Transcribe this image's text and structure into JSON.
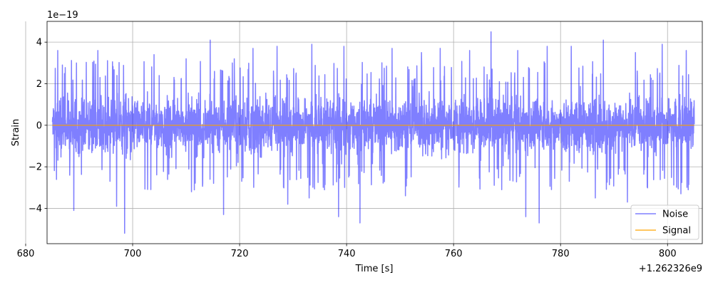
{
  "chart_data": {
    "type": "line",
    "title": "",
    "xlabel": "Time [s]",
    "ylabel": "Strain",
    "x_offset_text": "+1.262326e9",
    "y_scale_text": "1e−19",
    "xlim": [
      684.0,
      806.5
    ],
    "ylim": [
      -5.7,
      5.0
    ],
    "grid": true,
    "legend_position": "lower-right",
    "x_ticks": [
      {
        "value": 680,
        "label": "680"
      },
      {
        "value": 700,
        "label": "700"
      },
      {
        "value": 720,
        "label": "720"
      },
      {
        "value": 740,
        "label": "740"
      },
      {
        "value": 760,
        "label": "760"
      },
      {
        "value": 780,
        "label": "780"
      },
      {
        "value": 800,
        "label": "800"
      }
    ],
    "y_ticks": [
      {
        "value": -4,
        "label": "−4"
      },
      {
        "value": -2,
        "label": "−2"
      },
      {
        "value": 0,
        "label": "0"
      },
      {
        "value": 2,
        "label": "2"
      },
      {
        "value": 4,
        "label": "4"
      }
    ],
    "series": [
      {
        "name": "Noise",
        "color": "#0000ff",
        "opacity": 0.5,
        "x_range": [
          685.0,
          805.0
        ],
        "typical_envelope": [
          -2.4,
          2.4
        ],
        "peaks": [
          {
            "x": 686.0,
            "y": 3.6
          },
          {
            "x": 689.5,
            "y": 3.0
          },
          {
            "x": 693.5,
            "y": 3.6
          },
          {
            "x": 698.5,
            "y": 3.3
          },
          {
            "x": 704.0,
            "y": 3.4
          },
          {
            "x": 710.0,
            "y": 3.2
          },
          {
            "x": 714.5,
            "y": 4.1
          },
          {
            "x": 719.0,
            "y": 3.2
          },
          {
            "x": 722.5,
            "y": 3.7
          },
          {
            "x": 727.0,
            "y": 3.8
          },
          {
            "x": 733.5,
            "y": 3.9
          },
          {
            "x": 739.5,
            "y": 3.8
          },
          {
            "x": 742.5,
            "y": 4.5
          },
          {
            "x": 748.5,
            "y": 3.7
          },
          {
            "x": 754.0,
            "y": 3.5
          },
          {
            "x": 757.5,
            "y": 3.7
          },
          {
            "x": 763.0,
            "y": 3.6
          },
          {
            "x": 767.0,
            "y": 4.5
          },
          {
            "x": 772.0,
            "y": 3.6
          },
          {
            "x": 777.5,
            "y": 3.8
          },
          {
            "x": 782.0,
            "y": 3.8
          },
          {
            "x": 788.0,
            "y": 4.1
          },
          {
            "x": 794.0,
            "y": 3.5
          },
          {
            "x": 799.0,
            "y": 3.9
          },
          {
            "x": 803.5,
            "y": 3.6
          }
        ],
        "troughs": [
          {
            "x": 689.0,
            "y": -4.1
          },
          {
            "x": 698.5,
            "y": -5.2
          },
          {
            "x": 697.0,
            "y": -3.9
          },
          {
            "x": 711.0,
            "y": -3.2
          },
          {
            "x": 717.0,
            "y": -4.3
          },
          {
            "x": 729.0,
            "y": -3.8
          },
          {
            "x": 738.5,
            "y": -4.4
          },
          {
            "x": 742.5,
            "y": -4.7
          },
          {
            "x": 733.0,
            "y": -3.5
          },
          {
            "x": 751.0,
            "y": -3.4
          },
          {
            "x": 769.0,
            "y": -3.1
          },
          {
            "x": 773.5,
            "y": -4.4
          },
          {
            "x": 776.0,
            "y": -4.7
          },
          {
            "x": 786.5,
            "y": -3.5
          },
          {
            "x": 792.5,
            "y": -3.7
          },
          {
            "x": 802.5,
            "y": -3.3
          }
        ]
      },
      {
        "name": "Signal",
        "color": "#ffa500",
        "x": [
          685.0,
          805.0
        ],
        "y": [
          0.0,
          0.0
        ]
      }
    ]
  }
}
